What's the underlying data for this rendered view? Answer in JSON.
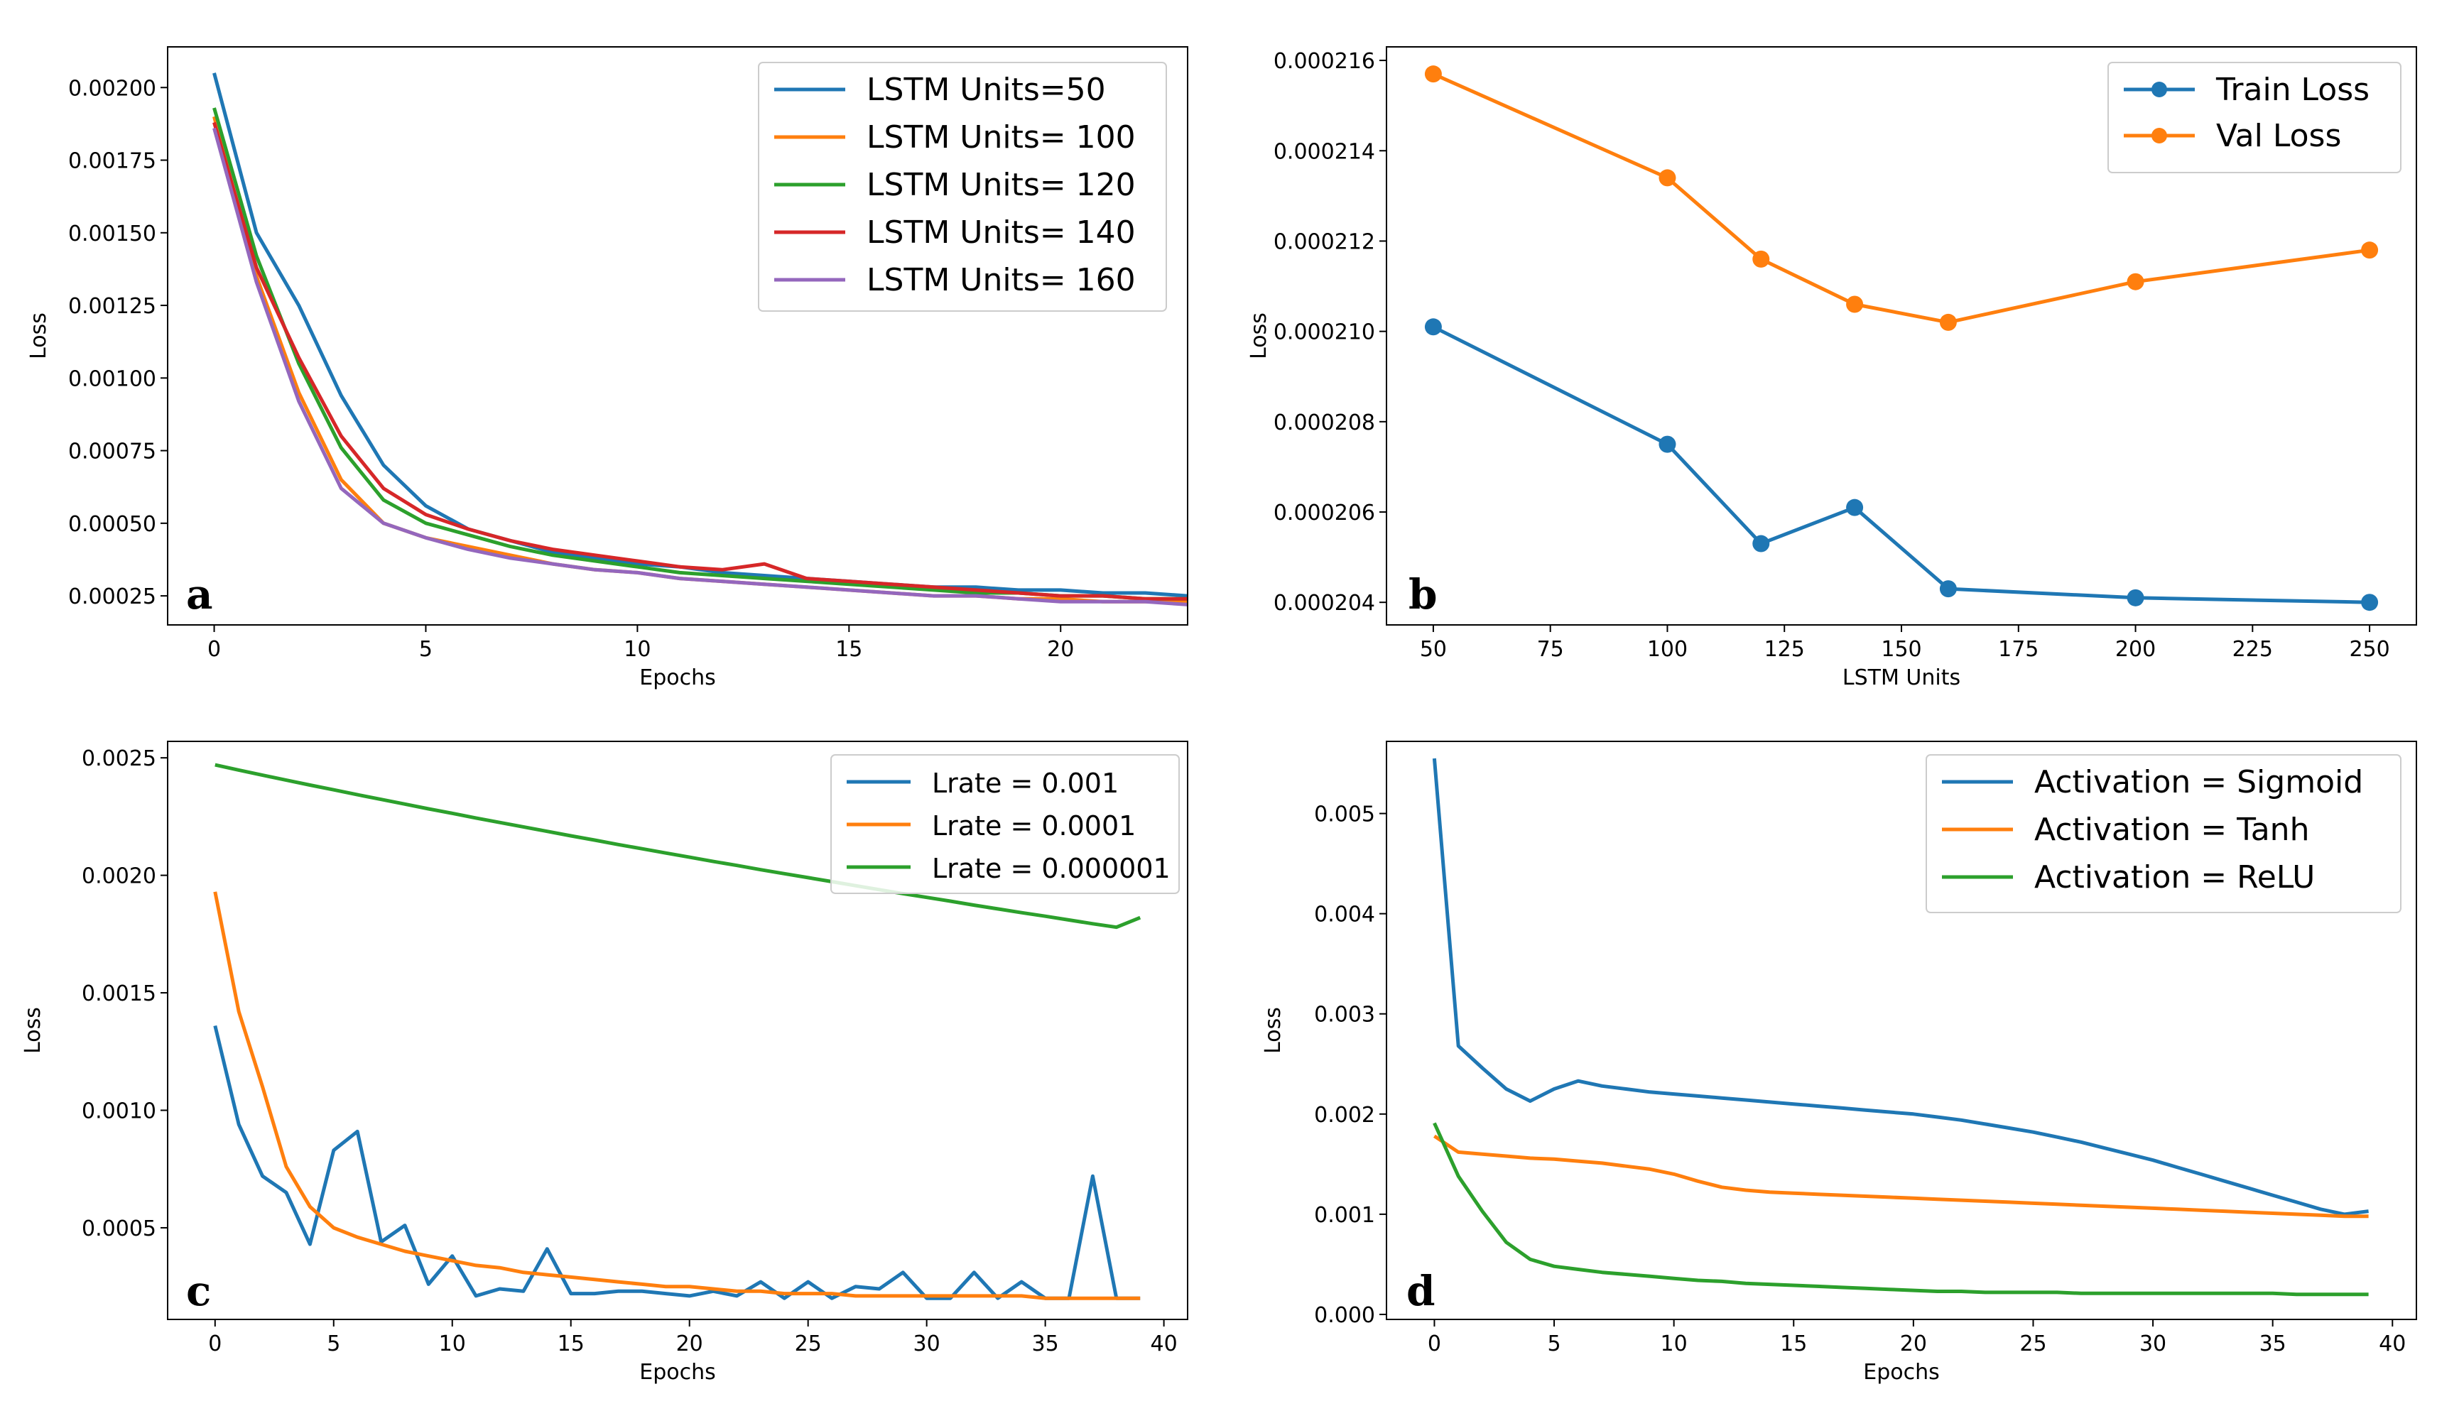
{
  "chart_data": [
    {
      "panel": "a",
      "type": "line",
      "xlabel": "Epochs",
      "ylabel": "Loss",
      "xlim": [
        -1.1,
        23
      ],
      "ylim": [
        0.00015,
        0.00214
      ],
      "xticks": [
        0,
        5,
        10,
        15,
        20
      ],
      "yticks": [
        0.00025,
        0.0005,
        0.00075,
        0.001,
        0.00125,
        0.0015,
        0.00175,
        0.002
      ],
      "ytick_labels": [
        "0.00025",
        "0.00050",
        "0.00075",
        "0.00100",
        "0.00125",
        "0.00150",
        "0.00175",
        "0.00200"
      ],
      "legend_position": "top-right",
      "x": [
        0,
        1,
        2,
        3,
        4,
        5,
        6,
        7,
        8,
        9,
        10,
        11,
        12,
        13,
        14,
        15,
        16,
        17,
        18,
        19,
        20,
        21,
        22,
        23
      ],
      "series": [
        {
          "name": "LSTM Units=50",
          "color": "#1f77b4",
          "values": [
            0.00205,
            0.0015,
            0.00125,
            0.00094,
            0.0007,
            0.00056,
            0.00048,
            0.00044,
            0.0004,
            0.00038,
            0.00036,
            0.00035,
            0.00033,
            0.00032,
            0.00031,
            0.0003,
            0.00029,
            0.00028,
            0.00028,
            0.00027,
            0.00027,
            0.00026,
            0.00026,
            0.00025
          ]
        },
        {
          "name": "LSTM Units= 100",
          "color": "#ff7f0e",
          "values": [
            0.0019,
            0.00135,
            0.00095,
            0.00065,
            0.0005,
            0.00045,
            0.00042,
            0.00039,
            0.00036,
            0.00034,
            0.00033,
            0.00031,
            0.0003,
            0.00029,
            0.00028,
            0.00027,
            0.00026,
            0.00025,
            0.00025,
            0.00024,
            0.00024,
            0.00023,
            0.00023,
            0.00023
          ]
        },
        {
          "name": "LSTM Units= 120",
          "color": "#2ca02c",
          "values": [
            0.00193,
            0.00142,
            0.00105,
            0.00076,
            0.00058,
            0.0005,
            0.00046,
            0.00042,
            0.00039,
            0.00037,
            0.00035,
            0.00033,
            0.00032,
            0.00031,
            0.0003,
            0.00029,
            0.00028,
            0.00027,
            0.00026,
            0.00026,
            0.00025,
            0.00025,
            0.00024,
            0.00024
          ]
        },
        {
          "name": "LSTM Units= 140",
          "color": "#d62728",
          "values": [
            0.00188,
            0.00138,
            0.00107,
            0.0008,
            0.00062,
            0.00053,
            0.00048,
            0.00044,
            0.00041,
            0.00039,
            0.00037,
            0.00035,
            0.00034,
            0.00036,
            0.00031,
            0.0003,
            0.00029,
            0.00028,
            0.00027,
            0.00026,
            0.00025,
            0.00025,
            0.00024,
            0.00024
          ]
        },
        {
          "name": "LSTM Units= 160",
          "color": "#9467bd",
          "values": [
            0.00186,
            0.00133,
            0.00092,
            0.00062,
            0.0005,
            0.00045,
            0.00041,
            0.00038,
            0.00036,
            0.00034,
            0.00033,
            0.00031,
            0.0003,
            0.00029,
            0.00028,
            0.00027,
            0.00026,
            0.00025,
            0.00025,
            0.00024,
            0.00023,
            0.00023,
            0.00023,
            0.00022
          ]
        }
      ]
    },
    {
      "panel": "b",
      "type": "line",
      "xlabel": "LSTM Units",
      "ylabel": "Loss",
      "xlim": [
        40,
        260
      ],
      "ylim": [
        0.0002035,
        0.0002163
      ],
      "xticks": [
        50,
        75,
        100,
        125,
        150,
        175,
        200,
        225,
        250
      ],
      "yticks": [
        0.000204,
        0.000206,
        0.000208,
        0.00021,
        0.000212,
        0.000214,
        0.000216
      ],
      "ytick_labels": [
        "0.000204",
        "0.000206",
        "0.000208",
        "0.000210",
        "0.000212",
        "0.000214",
        "0.000216"
      ],
      "legend_position": "top-right",
      "markers": true,
      "x": [
        50,
        100,
        120,
        140,
        160,
        200,
        250
      ],
      "series": [
        {
          "name": "Train Loss",
          "color": "#1f77b4",
          "values": [
            0.0002101,
            0.0002075,
            0.0002053,
            0.0002061,
            0.0002043,
            0.0002041,
            0.000204
          ]
        },
        {
          "name": "Val Loss",
          "color": "#ff7f0e",
          "values": [
            0.0002157,
            0.0002134,
            0.0002116,
            0.0002106,
            0.0002102,
            0.0002111,
            0.0002118
          ]
        }
      ]
    },
    {
      "panel": "c",
      "type": "line",
      "xlabel": "Epochs",
      "ylabel": "Loss",
      "xlim": [
        -2,
        41
      ],
      "ylim": [
        0.00011,
        0.00257
      ],
      "xticks": [
        0,
        5,
        10,
        15,
        20,
        25,
        30,
        35,
        40
      ],
      "yticks": [
        0.0005,
        0.001,
        0.0015,
        0.002,
        0.0025
      ],
      "ytick_labels": [
        "0.0005",
        "0.0010",
        "0.0015",
        "0.0020",
        "0.0025"
      ],
      "legend_position": "top-right",
      "x": [
        0,
        1,
        2,
        3,
        4,
        5,
        6,
        7,
        8,
        9,
        10,
        11,
        12,
        13,
        14,
        15,
        16,
        17,
        18,
        19,
        20,
        21,
        22,
        23,
        24,
        25,
        26,
        27,
        28,
        29,
        30,
        31,
        32,
        33,
        34,
        35,
        36,
        37,
        38,
        39
      ],
      "series": [
        {
          "name": "Lrate = 0.001",
          "color": "#1f77b4",
          "values": [
            0.00136,
            0.00094,
            0.00072,
            0.00065,
            0.00043,
            0.00083,
            0.00091,
            0.00044,
            0.00051,
            0.00026,
            0.00038,
            0.00021,
            0.00024,
            0.00023,
            0.00041,
            0.00022,
            0.00022,
            0.00023,
            0.00023,
            0.00022,
            0.00021,
            0.00023,
            0.00021,
            0.00027,
            0.0002,
            0.00027,
            0.0002,
            0.00025,
            0.00024,
            0.00031,
            0.0002,
            0.0002,
            0.00031,
            0.0002,
            0.00027,
            0.0002,
            0.0002,
            0.00072,
            0.0002,
            0.0002
          ]
        },
        {
          "name": "Lrate = 0.0001",
          "color": "#ff7f0e",
          "values": [
            0.00193,
            0.00142,
            0.0011,
            0.00076,
            0.00059,
            0.0005,
            0.00046,
            0.00043,
            0.0004,
            0.00038,
            0.00036,
            0.00034,
            0.00033,
            0.00031,
            0.0003,
            0.00029,
            0.00028,
            0.00027,
            0.00026,
            0.00025,
            0.00025,
            0.00024,
            0.00023,
            0.00023,
            0.00022,
            0.00022,
            0.00022,
            0.00021,
            0.00021,
            0.00021,
            0.00021,
            0.00021,
            0.00021,
            0.00021,
            0.00021,
            0.0002,
            0.0002,
            0.0002,
            0.0002,
            0.0002
          ]
        },
        {
          "name": "Lrate = 0.000001",
          "color": "#2ca02c",
          "values": [
            0.00247,
            0.002448,
            0.002426,
            0.002405,
            0.002384,
            0.002364,
            0.002343,
            0.002323,
            0.002303,
            0.002283,
            0.002264,
            0.002244,
            0.002225,
            0.002206,
            0.002187,
            0.002168,
            0.00215,
            0.002131,
            0.002113,
            0.002095,
            0.002077,
            0.002059,
            0.002042,
            0.002024,
            0.002007,
            0.00199,
            0.001973,
            0.001956,
            0.001939,
            0.001922,
            0.001906,
            0.00189,
            0.001873,
            0.001857,
            0.001841,
            0.001826,
            0.00181,
            0.001794,
            0.001779,
            0.00182
          ]
        }
      ]
    },
    {
      "panel": "d",
      "type": "line",
      "xlabel": "Epochs",
      "ylabel": "Loss",
      "xlim": [
        -2,
        41
      ],
      "ylim": [
        -5e-05,
        0.00572
      ],
      "xticks": [
        0,
        5,
        10,
        15,
        20,
        25,
        30,
        35,
        40
      ],
      "yticks": [
        0,
        0.001,
        0.002,
        0.003,
        0.004,
        0.005
      ],
      "ytick_labels": [
        "0.000",
        "0.001",
        "0.002",
        "0.003",
        "0.004",
        "0.005"
      ],
      "legend_position": "top-right",
      "x": [
        0,
        1,
        2,
        3,
        4,
        5,
        6,
        7,
        8,
        9,
        10,
        11,
        12,
        13,
        14,
        15,
        16,
        17,
        18,
        19,
        20,
        21,
        22,
        23,
        24,
        25,
        26,
        27,
        28,
        29,
        30,
        31,
        32,
        33,
        34,
        35,
        36,
        37,
        38,
        39
      ],
      "series": [
        {
          "name": "Activation = Sigmoid",
          "color": "#1f77b4",
          "values": [
            0.00555,
            0.00268,
            0.00246,
            0.00225,
            0.00213,
            0.00225,
            0.00233,
            0.00228,
            0.00225,
            0.00222,
            0.0022,
            0.00218,
            0.00216,
            0.00214,
            0.00212,
            0.0021,
            0.00208,
            0.00206,
            0.00204,
            0.00202,
            0.002,
            0.00197,
            0.00194,
            0.0019,
            0.00186,
            0.00182,
            0.00177,
            0.00172,
            0.00166,
            0.0016,
            0.00154,
            0.00147,
            0.0014,
            0.00133,
            0.00126,
            0.00119,
            0.00112,
            0.00105,
            0.001,
            0.00103
          ]
        },
        {
          "name": "Activation = Tanh",
          "color": "#ff7f0e",
          "values": [
            0.00178,
            0.00162,
            0.0016,
            0.00158,
            0.00156,
            0.00155,
            0.00153,
            0.00151,
            0.00148,
            0.00145,
            0.0014,
            0.00133,
            0.00127,
            0.00124,
            0.00122,
            0.00121,
            0.0012,
            0.00119,
            0.00118,
            0.00117,
            0.00116,
            0.00115,
            0.00114,
            0.00113,
            0.00112,
            0.00111,
            0.0011,
            0.00109,
            0.00108,
            0.00107,
            0.00106,
            0.00105,
            0.00104,
            0.00103,
            0.00102,
            0.00101,
            0.001,
            0.00099,
            0.00098,
            0.00098
          ]
        },
        {
          "name": "Activation = ReLU",
          "color": "#2ca02c",
          "values": [
            0.00191,
            0.00138,
            0.00103,
            0.00072,
            0.00055,
            0.00048,
            0.00045,
            0.00042,
            0.0004,
            0.00038,
            0.00036,
            0.00034,
            0.00033,
            0.00031,
            0.0003,
            0.00029,
            0.00028,
            0.00027,
            0.00026,
            0.00025,
            0.00024,
            0.00023,
            0.00023,
            0.00022,
            0.00022,
            0.00022,
            0.00022,
            0.00021,
            0.00021,
            0.00021,
            0.00021,
            0.00021,
            0.00021,
            0.00021,
            0.00021,
            0.00021,
            0.0002,
            0.0002,
            0.0002,
            0.0002
          ]
        }
      ]
    }
  ]
}
